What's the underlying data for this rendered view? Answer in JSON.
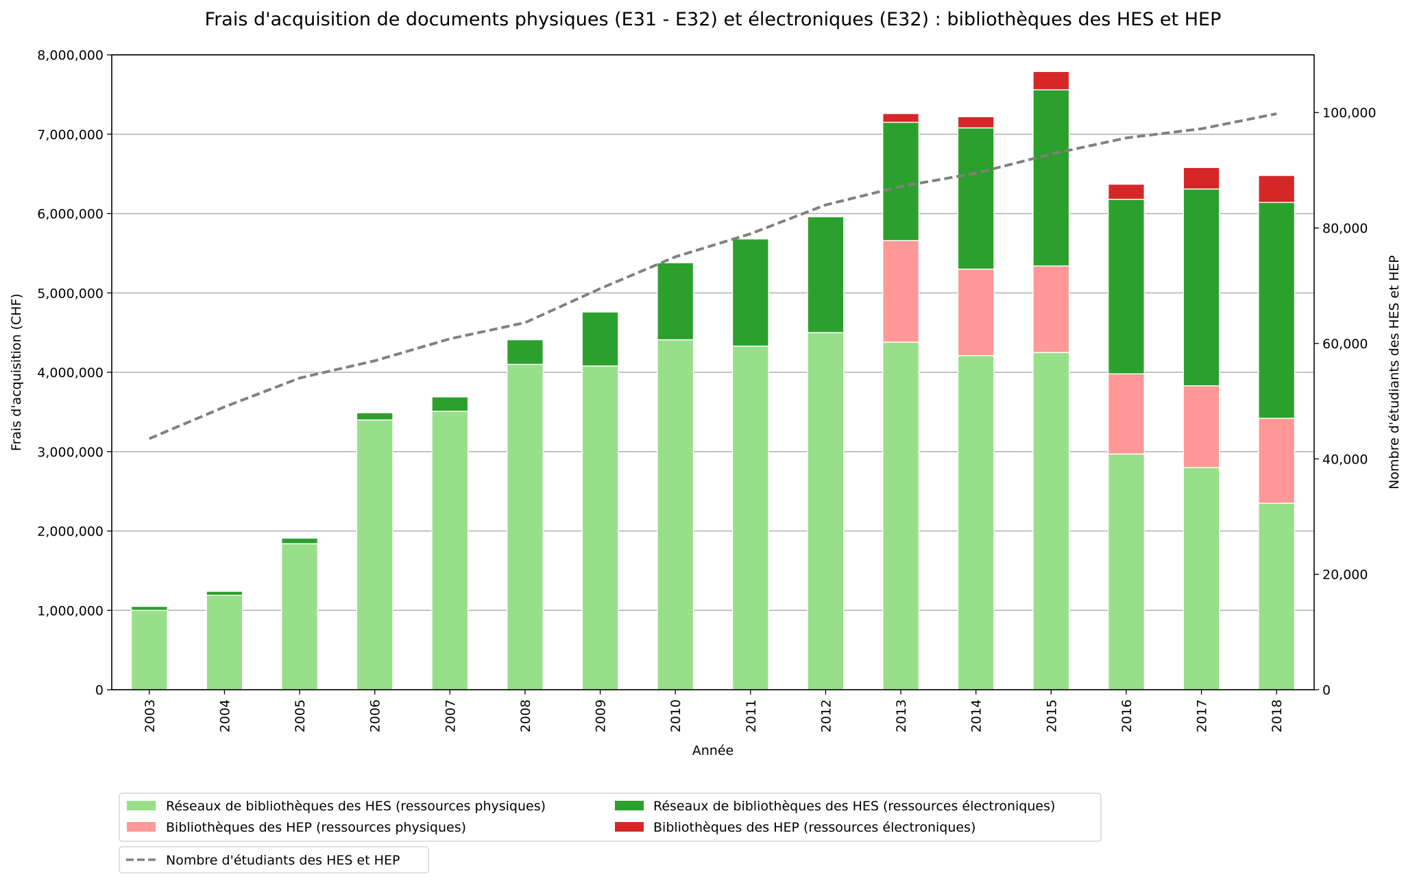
{
  "chart_data": {
    "type": "bar",
    "stacked": true,
    "title": "Frais d'acquisition de documents physiques (E31 - E32) et électroniques (E32) : bibliothèques des HES et HEP",
    "xlabel": "Année",
    "ylabel": "Frais d'acquisition (CHF)",
    "y2label": "Nombre d'étudiants des HES et HEP",
    "ylim": [
      0,
      8000000
    ],
    "y2lim": [
      0,
      110000
    ],
    "yticks": [
      0,
      1000000,
      2000000,
      3000000,
      4000000,
      5000000,
      6000000,
      7000000,
      8000000
    ],
    "ytick_labels": [
      "0",
      "1,000,000",
      "2,000,000",
      "3,000,000",
      "4,000,000",
      "5,000,000",
      "6,000,000",
      "7,000,000",
      "8,000,000"
    ],
    "y2ticks": [
      0,
      20000,
      40000,
      60000,
      80000,
      100000
    ],
    "y2tick_labels": [
      "0",
      "20,000",
      "40,000",
      "60,000",
      "80,000",
      "100,000"
    ],
    "grid": "y-major",
    "legend_placement": "bottom-left, below chart",
    "categories": [
      "2003",
      "2004",
      "2005",
      "2006",
      "2007",
      "2008",
      "2009",
      "2010",
      "2011",
      "2012",
      "2013",
      "2014",
      "2015",
      "2016",
      "2017",
      "2018"
    ],
    "series": [
      {
        "name": "Réseaux de bibliothèques des HES (ressources physiques)",
        "color": "#98df8a",
        "values": [
          1000000,
          1190000,
          1840000,
          3400000,
          3510000,
          4100000,
          4080000,
          4410000,
          4330000,
          4500000,
          4380000,
          4210000,
          4250000,
          2970000,
          2800000,
          2350000
        ]
      },
      {
        "name": "Bibliothèques des HEP (ressources physiques)",
        "color": "#ff9896",
        "values": [
          0,
          0,
          0,
          0,
          0,
          0,
          0,
          0,
          0,
          0,
          1280000,
          1090000,
          1090000,
          1010000,
          1030000,
          1070000
        ]
      },
      {
        "name": "Réseaux de bibliothèques des HES (ressources électroniques)",
        "color": "#2ca02c",
        "values": [
          50000,
          50000,
          70000,
          90000,
          180000,
          310000,
          680000,
          970000,
          1350000,
          1460000,
          1490000,
          1780000,
          2220000,
          2200000,
          2480000,
          2720000
        ]
      },
      {
        "name": "Bibliothèques des HEP (ressources électroniques)",
        "color": "#d62728",
        "values": [
          0,
          0,
          0,
          0,
          0,
          0,
          0,
          0,
          0,
          0,
          110000,
          140000,
          230000,
          190000,
          270000,
          340000
        ]
      }
    ],
    "line": {
      "name": "Nombre d'étudiants des HES et HEP",
      "axis": "y2",
      "color": "#808080",
      "style": "dashed",
      "values": [
        43500,
        49000,
        54000,
        57000,
        60800,
        63600,
        69500,
        75000,
        79000,
        84000,
        87200,
        89500,
        92800,
        95600,
        97200,
        99800
      ]
    }
  }
}
